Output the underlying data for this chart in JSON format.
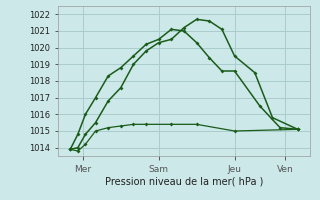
{
  "title": "Pression niveau de la mer( hPa )",
  "bg_color": "#cce8e8",
  "grid_color": "#aacccc",
  "line_color": "#1a5c1a",
  "ylim": [
    1013.5,
    1022.5
  ],
  "yticks": [
    1014,
    1015,
    1016,
    1017,
    1018,
    1019,
    1020,
    1021,
    1022
  ],
  "xtick_labels": [
    "Mer",
    "Sam",
    "Jeu",
    "Ven"
  ],
  "xtick_positions": [
    1,
    4,
    7,
    9
  ],
  "xlim": [
    0,
    10
  ],
  "line1_x": [
    0.5,
    0.8,
    1.1,
    1.5,
    2.0,
    2.5,
    3.0,
    3.5,
    4.5,
    5.5,
    7.0,
    9.5
  ],
  "line1_y": [
    1013.9,
    1013.8,
    1014.2,
    1015.0,
    1015.2,
    1015.3,
    1015.4,
    1015.4,
    1015.4,
    1015.4,
    1015.0,
    1015.1
  ],
  "line2_x": [
    0.5,
    0.8,
    1.1,
    1.5,
    2.0,
    2.5,
    3.0,
    3.5,
    4.0,
    4.5,
    5.0,
    5.5,
    6.0,
    6.5,
    7.0,
    8.0,
    8.8,
    9.5
  ],
  "line2_y": [
    1013.9,
    1014.8,
    1016.0,
    1017.0,
    1018.3,
    1018.8,
    1019.5,
    1020.2,
    1020.5,
    1021.1,
    1021.0,
    1020.3,
    1019.4,
    1018.6,
    1018.6,
    1016.5,
    1015.2,
    1015.1
  ],
  "line3_x": [
    0.5,
    0.8,
    1.1,
    1.5,
    2.0,
    2.5,
    3.0,
    3.5,
    4.0,
    4.5,
    5.0,
    5.5,
    6.0,
    6.5,
    7.0,
    7.8,
    8.5,
    9.5
  ],
  "line3_y": [
    1013.9,
    1014.0,
    1014.8,
    1015.5,
    1016.8,
    1017.6,
    1019.0,
    1019.8,
    1020.3,
    1020.5,
    1021.2,
    1021.7,
    1021.6,
    1021.1,
    1019.5,
    1018.5,
    1015.8,
    1015.1
  ]
}
